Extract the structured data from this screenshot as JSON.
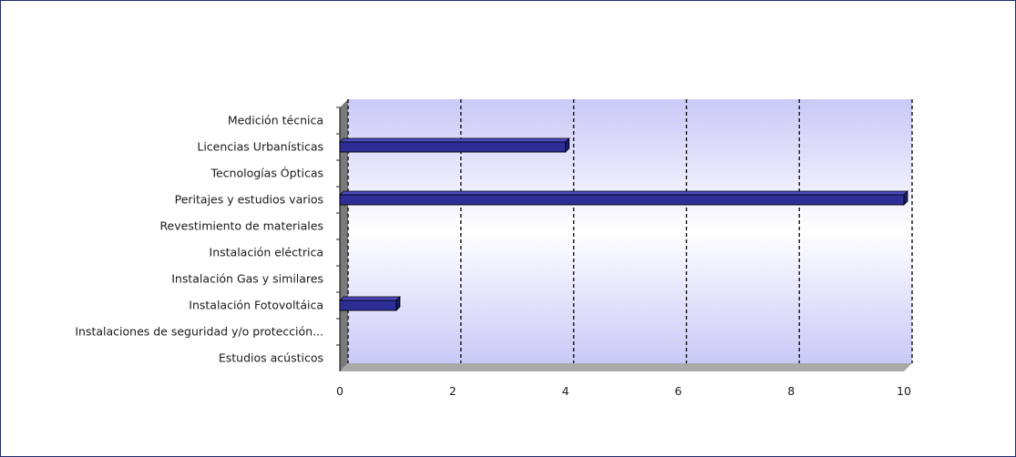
{
  "chart_data": {
    "type": "bar",
    "orientation": "horizontal",
    "categories": [
      "Medición técnica",
      "Licencias Urbanísticas",
      "Tecnologías Ópticas",
      "Peritajes y estudios varios",
      "Revestimiento de materiales",
      "Instalación eléctrica",
      "Instalación Gas y similares",
      "Instalación Fotovoltáica",
      "Instalaciones de seguridad y/o protección...",
      "Estudios acústicos"
    ],
    "values": [
      0,
      4,
      0,
      10,
      0,
      0,
      0,
      1,
      0,
      0
    ],
    "xlim": [
      0,
      10
    ],
    "xticks": [
      "0",
      "2",
      "4",
      "6",
      "8",
      "10"
    ],
    "grid": "vertical dashed",
    "colors": {
      "bar": "#2e2e96",
      "bar_side": "#1b1b6a",
      "plot_bg_top": "#c9c9f7",
      "plot_bg_mid": "#ffffff",
      "plot_bg_bottom": "#c9c9f7",
      "floor": "#a9a9a9",
      "wall": "#7a7a7a",
      "frame_border": "#1f2a6b"
    }
  }
}
